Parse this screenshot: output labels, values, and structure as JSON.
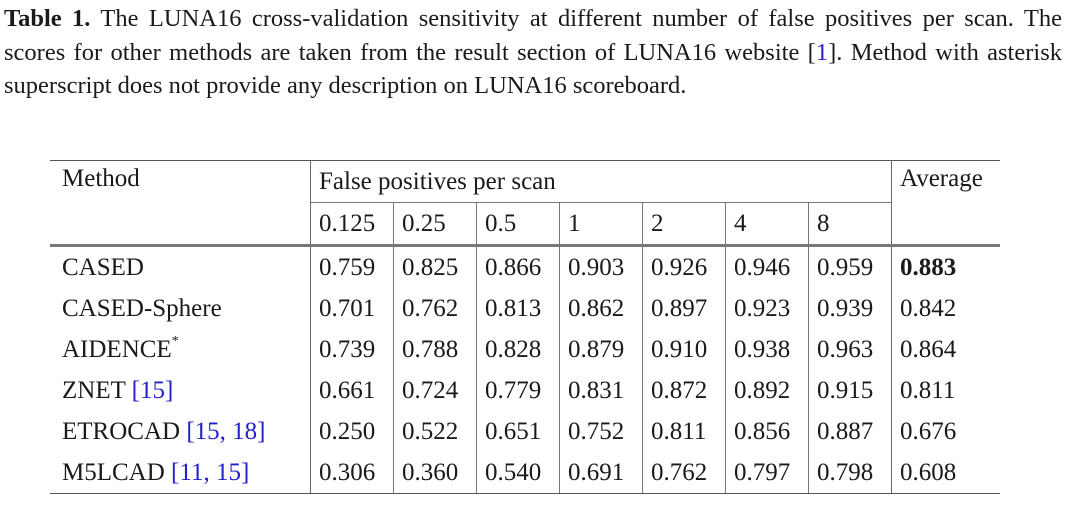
{
  "caption": {
    "label": "Table 1.",
    "text_before_cite": " The LUNA16 cross-validation sensitivity at different number of false positives per scan. The scores for other methods are taken from the result section of LUNA16 website ",
    "cite_open": "[",
    "cite_ref": "1",
    "cite_close": "]",
    "text_after_cite": ". Method with asterisk superscript does not provide any description on LUNA16 scoreboard."
  },
  "table": {
    "header_method": "Method",
    "header_fp": "False positives per scan",
    "header_average": "Average",
    "fp_levels": [
      "0.125",
      "0.25",
      "0.5",
      "1",
      "2",
      "4",
      "8"
    ],
    "rows": [
      {
        "method": "CASED",
        "values": [
          "0.759",
          "0.825",
          "0.866",
          "0.903",
          "0.926",
          "0.946",
          "0.959"
        ],
        "average": "0.883",
        "average_bold": true
      },
      {
        "method": "CASED-Sphere",
        "values": [
          "0.701",
          "0.762",
          "0.813",
          "0.862",
          "0.897",
          "0.923",
          "0.939"
        ],
        "average": "0.842"
      },
      {
        "method": "AIDENCE",
        "superscript": "*",
        "values": [
          "0.739",
          "0.788",
          "0.828",
          "0.879",
          "0.910",
          "0.938",
          "0.963"
        ],
        "average": "0.864"
      },
      {
        "method": "ZNET",
        "cites": "[15]",
        "values": [
          "0.661",
          "0.724",
          "0.779",
          "0.831",
          "0.872",
          "0.892",
          "0.915"
        ],
        "average": "0.811"
      },
      {
        "method": "ETROCAD",
        "cites": "[15, 18]",
        "values": [
          "0.250",
          "0.522",
          "0.651",
          "0.752",
          "0.811",
          "0.856",
          "0.887"
        ],
        "average": "0.676"
      },
      {
        "method": "M5LCAD",
        "cites": "[11, 15]",
        "values": [
          "0.306",
          "0.360",
          "0.540",
          "0.691",
          "0.762",
          "0.797",
          "0.798"
        ],
        "average": "0.608"
      }
    ]
  },
  "colors": {
    "citation": "#2222cc",
    "text": "#1a1a1a"
  }
}
